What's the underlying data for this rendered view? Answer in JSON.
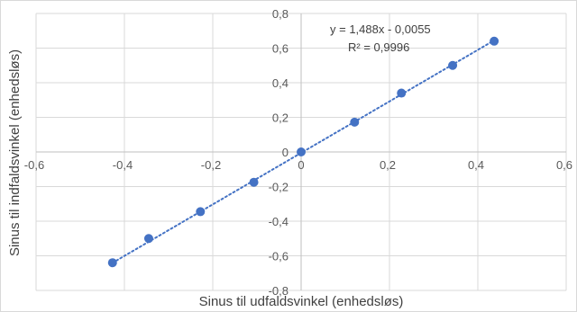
{
  "chart_data": {
    "type": "scatter",
    "title": "",
    "xlabel": "Sinus til udfaldsvinkel (enhedsløs)",
    "ylabel": "Sinus til indfaldsvinkel (enhedsløs)",
    "xlim": [
      -0.6,
      0.6
    ],
    "ylim": [
      -0.8,
      0.8
    ],
    "x_ticks": [
      -0.6,
      -0.4,
      -0.2,
      0,
      0.2,
      0.4,
      0.6
    ],
    "y_ticks": [
      -0.8,
      -0.6,
      -0.4,
      -0.2,
      0,
      0.2,
      0.4,
      0.6,
      0.8
    ],
    "x_tick_labels": [
      "-0,6",
      "-0,4",
      "-0,2",
      "0",
      "0,2",
      "0,4",
      "0,6"
    ],
    "y_tick_labels": [
      "-0,8",
      "-0,6",
      "-0,4",
      "-0,2",
      "0",
      "0,2",
      "0,4",
      "0,6",
      "0,8"
    ],
    "grid": true,
    "legend": "none",
    "series": [
      {
        "color": "#4472c4",
        "points": [
          {
            "x": -0.427,
            "y": -0.64
          },
          {
            "x": -0.345,
            "y": -0.5
          },
          {
            "x": -0.228,
            "y": -0.345
          },
          {
            "x": -0.107,
            "y": -0.175
          },
          {
            "x": 0.0,
            "y": 0.0
          },
          {
            "x": 0.121,
            "y": 0.172
          },
          {
            "x": 0.227,
            "y": 0.34
          },
          {
            "x": 0.343,
            "y": 0.5
          },
          {
            "x": 0.437,
            "y": 0.64
          }
        ]
      }
    ],
    "trendline": {
      "type": "linear",
      "style": "dotted",
      "color": "#4472c4",
      "slope": 1.488,
      "intercept": -0.0055,
      "equation_label": "y = 1,488x - 0,0055",
      "r2_label": "R² = 0,9996"
    }
  }
}
